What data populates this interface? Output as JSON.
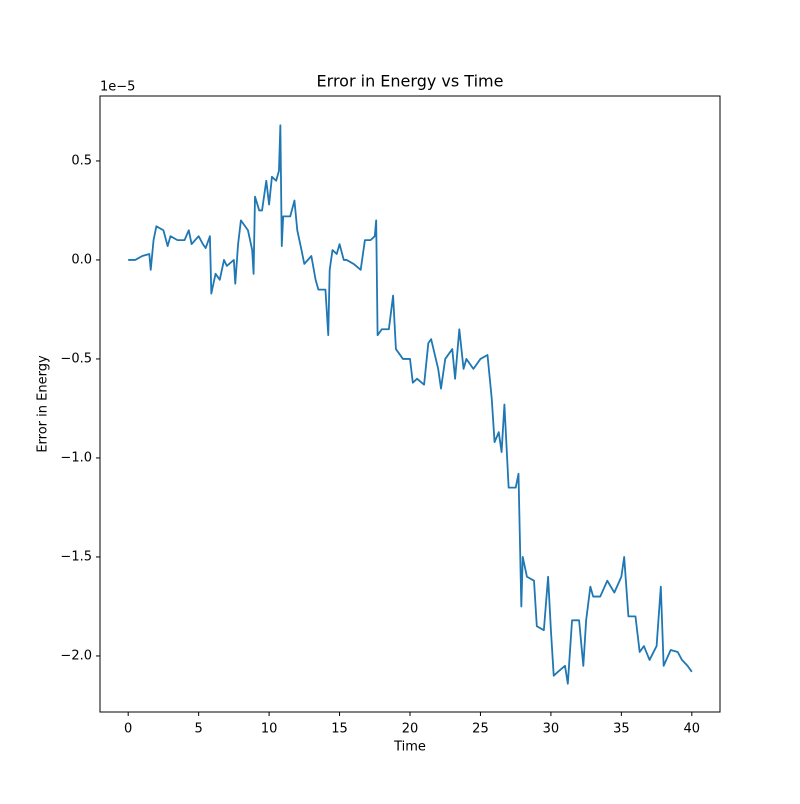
{
  "chart_data": {
    "type": "line",
    "title": "Error in Energy vs Time",
    "x_label": "Time",
    "y_label": "Error in Energy",
    "y_offset_label": "1e−5",
    "x": [
      0,
      0.5,
      1,
      1.5,
      1.6,
      1.8,
      2,
      2.5,
      2.8,
      3,
      3.5,
      4,
      4.3,
      4.5,
      5,
      5.3,
      5.5,
      5.8,
      5.9,
      6.2,
      6.5,
      6.8,
      7,
      7.5,
      7.6,
      7.8,
      8,
      8.5,
      8.8,
      8.9,
      9,
      9.3,
      9.5,
      9.8,
      10,
      10.2,
      10.5,
      10.7,
      10.8,
      10.9,
      11,
      11.5,
      11.8,
      12,
      12.3,
      12.5,
      13,
      13.3,
      13.5,
      14,
      14.2,
      14.3,
      14.5,
      14.8,
      15,
      15.3,
      15.5,
      16,
      16.5,
      16.8,
      17.2,
      17.5,
      17.6,
      17.7,
      18,
      18.5,
      18.8,
      19,
      19.5,
      20,
      20.2,
      20.5,
      21,
      21.3,
      21.5,
      22,
      22.2,
      22.5,
      23,
      23.2,
      23.5,
      23.8,
      24,
      24.5,
      25,
      25.5,
      25.8,
      26,
      26.3,
      26.5,
      26.7,
      27,
      27.5,
      27.7,
      27.9,
      28,
      28.3,
      28.8,
      29,
      29.5,
      29.8,
      30,
      30.2,
      30.5,
      31,
      31.2,
      31.5,
      32,
      32.3,
      32.5,
      32.8,
      33,
      33.5,
      34,
      34.5,
      35,
      35.2,
      35.5,
      36,
      36.3,
      36.6,
      37,
      37.5,
      37.8,
      38,
      38.5,
      39,
      39.3,
      39.7,
      40
    ],
    "series": [
      {
        "name": "Error in Energy",
        "color": "#1f77b4",
        "values": [
          0,
          0,
          0.02,
          0.03,
          -0.05,
          0.1,
          0.17,
          0.15,
          0.07,
          0.12,
          0.1,
          0.1,
          0.15,
          0.08,
          0.12,
          0.08,
          0.06,
          0.12,
          -0.17,
          -0.07,
          -0.1,
          0,
          -0.03,
          0,
          -0.12,
          0.08,
          0.2,
          0.15,
          0.05,
          -0.07,
          0.32,
          0.25,
          0.25,
          0.4,
          0.28,
          0.42,
          0.4,
          0.45,
          0.68,
          0.07,
          0.22,
          0.22,
          0.3,
          0.15,
          0.05,
          -0.02,
          0.02,
          -0.1,
          -0.15,
          -0.15,
          -0.38,
          -0.05,
          0.05,
          0.03,
          0.08,
          0,
          0,
          -0.02,
          -0.05,
          0.1,
          0.1,
          0.12,
          0.2,
          -0.38,
          -0.35,
          -0.35,
          -0.18,
          -0.45,
          -0.5,
          -0.5,
          -0.62,
          -0.6,
          -0.63,
          -0.42,
          -0.4,
          -0.55,
          -0.65,
          -0.5,
          -0.45,
          -0.6,
          -0.35,
          -0.55,
          -0.5,
          -0.55,
          -0.5,
          -0.48,
          -0.7,
          -0.92,
          -0.87,
          -0.97,
          -0.73,
          -1.15,
          -1.15,
          -1.08,
          -1.75,
          -1.5,
          -1.6,
          -1.62,
          -1.85,
          -1.87,
          -1.6,
          -1.87,
          -2.1,
          -2.08,
          -2.05,
          -2.14,
          -1.82,
          -1.82,
          -2.05,
          -1.82,
          -1.65,
          -1.7,
          -1.7,
          -1.62,
          -1.68,
          -1.6,
          -1.5,
          -1.8,
          -1.8,
          -1.98,
          -1.95,
          -2.02,
          -1.95,
          -1.65,
          -2.05,
          -1.97,
          -1.98,
          -2.02,
          -2.05,
          -2.08
        ]
      }
    ],
    "xlim": [
      -2,
      42
    ],
    "xticks": [
      0,
      5,
      10,
      15,
      20,
      25,
      30,
      35,
      40
    ],
    "ylim": [
      -2.283,
      0.828
    ],
    "yticks": [
      {
        "value": -2,
        "label": "−2.0"
      },
      {
        "value": -1.5,
        "label": "−1.5"
      },
      {
        "value": -1,
        "label": "−1.0"
      },
      {
        "value": -0.5,
        "label": "−0.5"
      },
      {
        "value": 0,
        "label": "0.0"
      },
      {
        "value": 0.5,
        "label": "0.5"
      }
    ],
    "grid": false
  }
}
